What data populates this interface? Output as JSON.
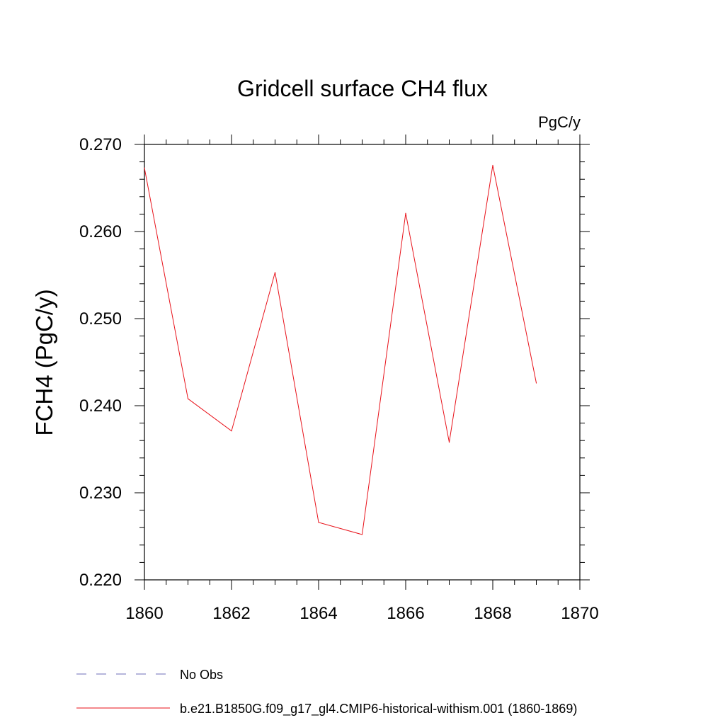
{
  "chart_data": {
    "type": "line",
    "title": "Gridcell surface CH4 flux",
    "units": "PgC/y",
    "ylabel": "FCH4  (PgC/y)",
    "xlabel": "",
    "xlim": [
      1860,
      1870
    ],
    "ylim": [
      0.22,
      0.27
    ],
    "x_ticks": [
      1860,
      1862,
      1864,
      1866,
      1868,
      1870
    ],
    "x_tick_labels": [
      "1860",
      "1862",
      "1864",
      "1866",
      "1868",
      "1870"
    ],
    "y_ticks": [
      0.22,
      0.23,
      0.24,
      0.25,
      0.26,
      0.27
    ],
    "y_tick_labels": [
      "0.220",
      "0.230",
      "0.240",
      "0.250",
      "0.260",
      "0.270"
    ],
    "grid": false,
    "legend_position": "bottom",
    "series": [
      {
        "name": "b.e21.B1850G.f09_g17_gl4.CMIP6-historical-withism.001 (1860-1869)",
        "color": "#e8121a",
        "style": "solid",
        "x": [
          1860,
          1861,
          1862,
          1863,
          1864,
          1865,
          1866,
          1867,
          1868,
          1869
        ],
        "y": [
          0.2673,
          0.2408,
          0.2371,
          0.2553,
          0.2266,
          0.2252,
          0.2621,
          0.2358,
          0.2676,
          0.2426
        ]
      }
    ],
    "legend": [
      {
        "label": "No Obs",
        "color": "#6d6db8",
        "style": "dashed"
      },
      {
        "label": "b.e21.B1850G.f09_g17_gl4.CMIP6-historical-withism.001 (1860-1869)",
        "color": "#e8121a",
        "style": "solid"
      }
    ]
  }
}
